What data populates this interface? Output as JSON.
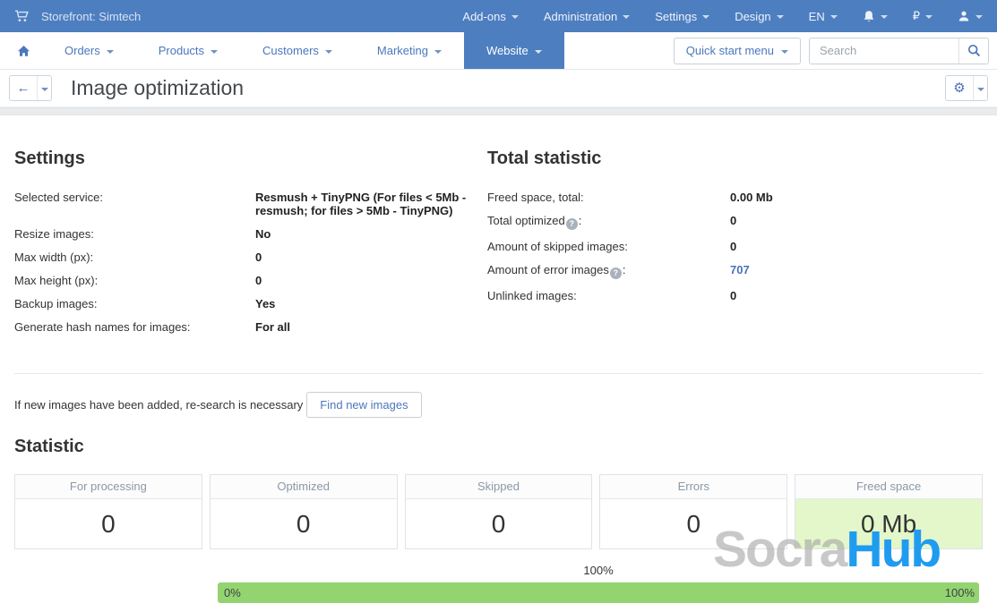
{
  "topbar": {
    "brand": "Storefront: Simtech",
    "menus": [
      "Add-ons",
      "Administration",
      "Settings",
      "Design",
      "EN"
    ],
    "currency": "₽"
  },
  "navbar": {
    "items": [
      {
        "label": "Orders",
        "active": false
      },
      {
        "label": "Products",
        "active": false
      },
      {
        "label": "Customers",
        "active": false
      },
      {
        "label": "Marketing",
        "active": false
      },
      {
        "label": "Website",
        "active": true
      }
    ],
    "quick_start_label": "Quick start menu",
    "search_placeholder": "Search"
  },
  "page": {
    "title": "Image optimization"
  },
  "settings": {
    "heading": "Settings",
    "rows": [
      {
        "label": "Selected service:",
        "value": "Resmush + TinyPNG (For files < 5Mb - resmush; for files > 5Mb - TinyPNG)"
      },
      {
        "label": "Resize images:",
        "value": "No"
      },
      {
        "label": "Max width (px):",
        "value": "0"
      },
      {
        "label": "Max height (px):",
        "value": "0"
      },
      {
        "label": "Backup images:",
        "value": "Yes"
      },
      {
        "label": "Generate hash names for images:",
        "value": "For all"
      }
    ]
  },
  "total_statistic": {
    "heading": "Total statistic",
    "rows": [
      {
        "label": "Freed space, total:",
        "value": "0.00 Mb"
      },
      {
        "label": "Total optimized",
        "help": "?",
        "suffix": ":",
        "value": "0"
      },
      {
        "label": "Amount of skipped images:",
        "value": "0"
      },
      {
        "label": "Amount of error images",
        "help": "?",
        "suffix": ":",
        "value": "707",
        "link": true
      },
      {
        "label": "Unlinked images:",
        "value": "0"
      }
    ]
  },
  "research": {
    "text": "If new images have been added, re-search is necessary",
    "button_label": "Find new images"
  },
  "statistic": {
    "heading": "Statistic",
    "cards": [
      {
        "title": "For processing",
        "value": "0",
        "highlight": false
      },
      {
        "title": "Optimized",
        "value": "0",
        "highlight": false
      },
      {
        "title": "Skipped",
        "value": "0",
        "highlight": false
      },
      {
        "title": "Errors",
        "value": "0",
        "highlight": false
      },
      {
        "title": "Freed space",
        "value": "0 Mb",
        "highlight": true
      }
    ]
  },
  "progress": {
    "top_label": "100%",
    "left_label": "0%",
    "right_label": "100%",
    "percent": 100
  },
  "watermark": {
    "part1": "Socra",
    "part2": "Hub"
  },
  "colors": {
    "accent": "#4d7ec0",
    "link": "#4a77bc",
    "progress_fill": "#93d470",
    "highlight_bg": "#e4f7ca"
  }
}
